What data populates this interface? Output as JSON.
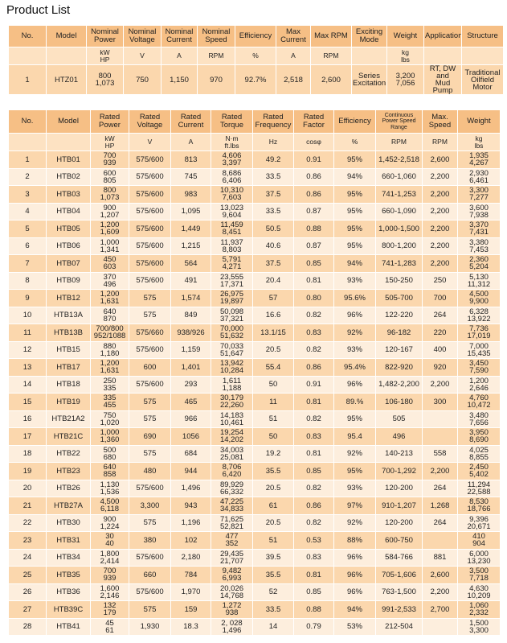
{
  "title": "Product List",
  "table_1": {
    "header": [
      "No.",
      "Model",
      "Nominal Power",
      "Nominal Voltage",
      "Nominal Current",
      "Nominal Speed",
      "Efficiency",
      "Max Current",
      "Max RPM",
      "Exciting Mode",
      "Weight",
      "Application",
      "Structure"
    ],
    "units": [
      null,
      null,
      [
        "kW",
        "HP"
      ],
      "V",
      "A",
      "RPM",
      "%",
      "A",
      "RPM",
      null,
      [
        "kg",
        "lbs"
      ],
      null,
      null
    ],
    "rows": [
      [
        "1",
        "HTZ01",
        [
          "800",
          "1,073"
        ],
        "750",
        "1,150",
        "970",
        "92.7%",
        "2,518",
        "2,600",
        [
          "Series",
          "Excitation"
        ],
        [
          "3,200",
          "7,056"
        ],
        [
          "RT, DW and",
          "Mud Pump"
        ],
        [
          "Traditional",
          "Oilfield Motor"
        ]
      ]
    ]
  },
  "table_2": {
    "header": [
      "No.",
      "Model",
      "Rated Power",
      "Rated Voltage",
      "Rated Current",
      "Rated Torque",
      "Rated Frequency",
      "Rated Factor",
      "Efficiency",
      "Continuous Power Speed Range",
      "Max. Speed",
      "Weight"
    ],
    "units": [
      null,
      null,
      [
        "kW",
        "HP"
      ],
      "V",
      "A",
      [
        "N·m",
        "ft.lbs"
      ],
      "Hz",
      "cosφ",
      "%",
      "RPM",
      "RPM",
      [
        "kg",
        "lbs"
      ]
    ],
    "rows": [
      [
        "1",
        "HTB01",
        [
          "700",
          "939"
        ],
        "575/600",
        "813",
        [
          "4,606",
          "3,397"
        ],
        "49.2",
        "0.91",
        "95%",
        "1,452-2,518",
        "2,600",
        [
          "1,935",
          "4,267"
        ]
      ],
      [
        "2",
        "HTB02",
        [
          "600",
          "805"
        ],
        "575/600",
        "745",
        [
          "8,686",
          "6,406"
        ],
        "33.5",
        "0.86",
        "94%",
        "660-1,060",
        "2,200",
        [
          "2,930",
          "6,461"
        ]
      ],
      [
        "3",
        "HTB03",
        [
          "800",
          "1,073"
        ],
        "575/600",
        "983",
        [
          "10,310",
          "7,603"
        ],
        "37.5",
        "0.86",
        "95%",
        "741-1,253",
        "2,200",
        [
          "3,300",
          "7,277"
        ]
      ],
      [
        "4",
        "HTB04",
        [
          "900",
          "1,207"
        ],
        "575/600",
        "1,095",
        [
          "13,023",
          "9,604"
        ],
        "33.5",
        "0.87",
        "95%",
        "660-1,090",
        "2,200",
        [
          "3,600",
          "7,938"
        ]
      ],
      [
        "5",
        "HTB05",
        [
          "1,200",
          "1,609"
        ],
        "575/600",
        "1,449",
        [
          "11,459",
          "8,451"
        ],
        "50.5",
        "0.88",
        "95%",
        "1,000-1,500",
        "2,200",
        [
          "3,370",
          "7,431"
        ]
      ],
      [
        "6",
        "HTB06",
        [
          "1,000",
          "1,341"
        ],
        "575/600",
        "1,215",
        [
          "11,937",
          "8,803"
        ],
        "40.6",
        "0.87",
        "95%",
        "800-1,200",
        "2,200",
        [
          "3,380",
          "7,453"
        ]
      ],
      [
        "7",
        "HTB07",
        [
          "450",
          "603"
        ],
        "575/600",
        "564",
        [
          "5,791",
          "4,271"
        ],
        "37.5",
        "0.85",
        "94%",
        "741-1,283",
        "2,200",
        [
          "2,360",
          "5,204"
        ]
      ],
      [
        "8",
        "HTB09",
        [
          "370",
          "496"
        ],
        "575/600",
        "491",
        [
          "23,555",
          "17,371"
        ],
        "20.4",
        "0.81",
        "93%",
        "150-250",
        "250",
        [
          "5,130",
          "11,312"
        ]
      ],
      [
        "9",
        "HTB12",
        [
          "1,200",
          "1,631"
        ],
        "575",
        "1,574",
        [
          "26,975",
          "19,897"
        ],
        "57",
        "0.80",
        "95.6%",
        "505-700",
        "700",
        [
          "4,500",
          "9,900"
        ]
      ],
      [
        "10",
        "HTB13A",
        [
          "640",
          "870"
        ],
        "575",
        "849",
        [
          "50,098",
          "37,321"
        ],
        "16.6",
        "0.82",
        "96%",
        "122-220",
        "264",
        [
          "6,328",
          "13,922"
        ]
      ],
      [
        "11",
        "HTB13B",
        [
          "700/800",
          "952/1088"
        ],
        "575/660",
        "938/926",
        [
          "70,000",
          "51,632"
        ],
        "13.1/15",
        "0.83",
        "92%",
        "96-182",
        "220",
        [
          "7,736",
          "17,019"
        ]
      ],
      [
        "12",
        "HTB15",
        [
          "880",
          "1,180"
        ],
        "575/600",
        "1,159",
        [
          "70,033",
          "51,647"
        ],
        "20.5",
        "0.82",
        "93%",
        "120-167",
        "400",
        [
          "7,000",
          "15,435"
        ]
      ],
      [
        "13",
        "HTB17",
        [
          "1,200",
          "1,631"
        ],
        "600",
        "1,401",
        [
          "13,942",
          "10,284"
        ],
        "55.4",
        "0.86",
        "95.4%",
        "822-920",
        "920",
        [
          "3,450",
          "7,590"
        ]
      ],
      [
        "14",
        "HTB18",
        [
          "250",
          "335"
        ],
        "575/600",
        "293",
        [
          "1,611",
          "1,188"
        ],
        "50",
        "0.91",
        "96%",
        "1,482-2,200",
        "2,200",
        [
          "1,200",
          "2,646"
        ]
      ],
      [
        "15",
        "HTB19",
        [
          "335",
          "455"
        ],
        "575",
        "465",
        [
          "30,179",
          "22,260"
        ],
        "11",
        "0.81",
        "89.%",
        "106-180",
        "300",
        [
          "4,760",
          "10,472"
        ]
      ],
      [
        "16",
        "HTB21A2",
        [
          "750",
          "1,020"
        ],
        "575",
        "966",
        [
          "14,183",
          "10,461"
        ],
        "51",
        "0.82",
        "95%",
        "505",
        null,
        [
          "3,480",
          "7,656"
        ]
      ],
      [
        "17",
        "HTB21C",
        [
          "1,000",
          "1,360"
        ],
        "690",
        "1056",
        [
          "19,254",
          "14,202"
        ],
        "50",
        "0.83",
        "95.4",
        "496",
        null,
        [
          "3,950",
          "8,690"
        ]
      ],
      [
        "18",
        "HTB22",
        [
          "500",
          "680"
        ],
        "575",
        "684",
        [
          "34,003",
          "25,081"
        ],
        "19.2",
        "0.81",
        "92%",
        "140-213",
        "558",
        [
          "4,025",
          "8,855"
        ]
      ],
      [
        "19",
        "HTB23",
        [
          "640",
          "858"
        ],
        "480",
        "944",
        [
          "8,706",
          "6,420"
        ],
        "35.5",
        "0.85",
        "95%",
        "700-1,292",
        "2,200",
        [
          "2,450",
          "5,402"
        ]
      ],
      [
        "20",
        "HTB26",
        [
          "1,130",
          "1,536"
        ],
        "575/600",
        "1,496",
        [
          "89,929",
          "66,332"
        ],
        "20.5",
        "0.82",
        "93%",
        "120-200",
        "264",
        [
          "11,294",
          "22,588"
        ]
      ],
      [
        "21",
        "HTB27A",
        [
          "4,500",
          "6,118"
        ],
        "3,300",
        "943",
        [
          "47,225",
          "34,833"
        ],
        "61",
        "0.86",
        "97%",
        "910-1,207",
        "1,268",
        [
          "8,530",
          "18,766"
        ]
      ],
      [
        "22",
        "HTB30",
        [
          "900",
          "1,224"
        ],
        "575",
        "1,196",
        [
          "71,625",
          "52,821"
        ],
        "20.5",
        "0.82",
        "92%",
        "120-200",
        "264",
        [
          "9,396",
          "20,671"
        ]
      ],
      [
        "23",
        "HTB31",
        [
          "30",
          "40"
        ],
        "380",
        "102",
        [
          "477",
          "352"
        ],
        "51",
        "0.53",
        "88%",
        "600-750",
        null,
        [
          "410",
          "904"
        ]
      ],
      [
        "24",
        "HTB34",
        [
          "1,800",
          "2,414"
        ],
        "575/600",
        "2,180",
        [
          "29,435",
          "21,707"
        ],
        "39.5",
        "0.83",
        "96%",
        "584-766",
        "881",
        [
          "6,000",
          "13,230"
        ]
      ],
      [
        "25",
        "HTB35",
        [
          "700",
          "939"
        ],
        "660",
        "784",
        [
          "9,482",
          "6,993"
        ],
        "35.5",
        "0.81",
        "96%",
        "705-1,606",
        "2,600",
        [
          "3,500",
          "7,718"
        ]
      ],
      [
        "26",
        "HTB36",
        [
          "1,600",
          "2,146"
        ],
        "575/600",
        "1,970",
        [
          "20,026",
          "14,768"
        ],
        "52",
        "0.85",
        "96%",
        "763-1,500",
        "2,200",
        [
          "4,630",
          "10,209"
        ]
      ],
      [
        "27",
        "HTB39C",
        [
          "132",
          "179"
        ],
        "575",
        "159",
        [
          "1,272",
          "938"
        ],
        "33.5",
        "0.88",
        "94%",
        "991-2,533",
        "2,700",
        [
          "1,060",
          "2,332"
        ]
      ],
      [
        "28",
        "HTB41",
        [
          "45",
          "61"
        ],
        "1,930",
        "18.3",
        [
          "2, 028",
          "1,496"
        ],
        "14",
        "0.79",
        "53%",
        "212-504",
        null,
        [
          "1,500",
          "3,300"
        ]
      ]
    ]
  }
}
